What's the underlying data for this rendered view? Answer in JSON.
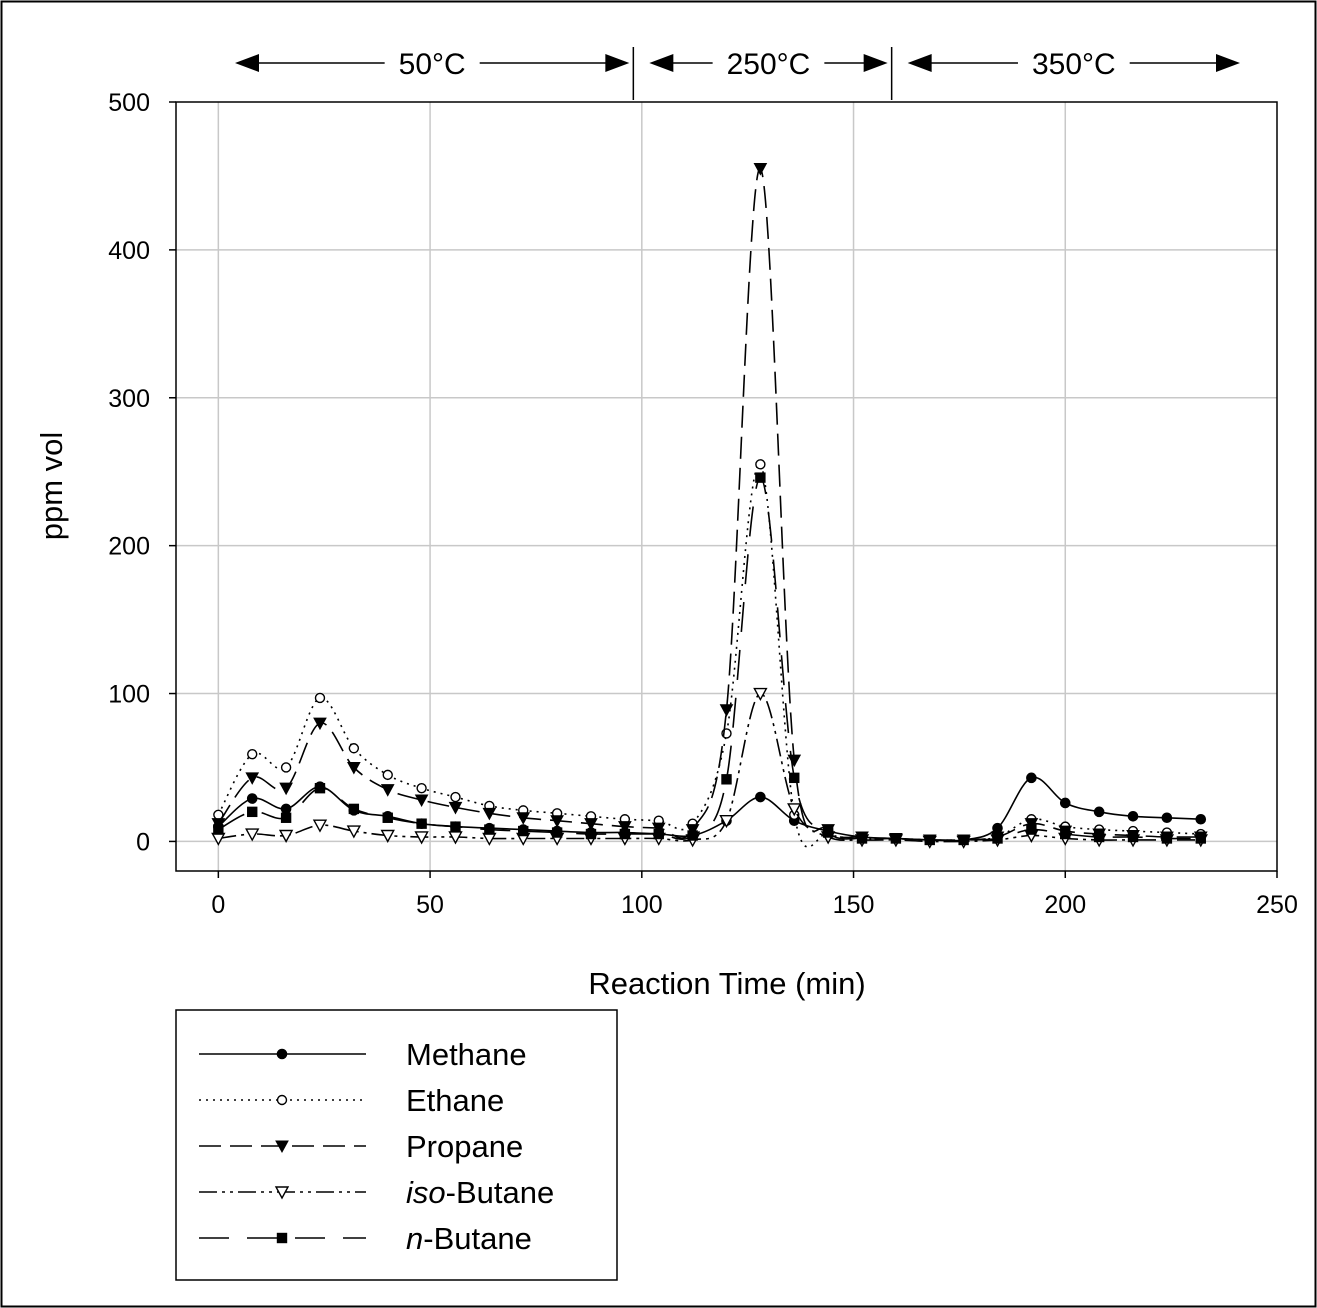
{
  "chart_data": {
    "type": "line",
    "xlabel": "Reaction Time (min)",
    "ylabel": "ppm vol",
    "xlim": [
      -10,
      250
    ],
    "ylim": [
      -20,
      500
    ],
    "xticks": [
      "0",
      "50",
      "100",
      "150",
      "200",
      "250"
    ],
    "yticks": [
      "0",
      "100",
      "200",
      "300",
      "400",
      "500"
    ],
    "grid": true,
    "legend_position": "bottom-left",
    "temperature_regions": [
      {
        "label": "50°C",
        "x_start": -10,
        "x_end": 98
      },
      {
        "label": "250°C",
        "x_start": 98,
        "x_end": 159
      },
      {
        "label": "350°C",
        "x_start": 159,
        "x_end": 240
      }
    ],
    "x": [
      0,
      8,
      16,
      24,
      32,
      40,
      48,
      56,
      64,
      72,
      80,
      88,
      96,
      104,
      112,
      120,
      128,
      136,
      144,
      152,
      160,
      168,
      176,
      184,
      192,
      200,
      208,
      216,
      224,
      232
    ],
    "series": [
      {
        "name": "Methane",
        "line_style": "solid",
        "marker": "filled-circle",
        "values": [
          10,
          29,
          22,
          37,
          21,
          17,
          12,
          10,
          9,
          8,
          7,
          6,
          6,
          5,
          4,
          14,
          30,
          14,
          7,
          3,
          2,
          1,
          1,
          9,
          43,
          26,
          20,
          17,
          16,
          15
        ]
      },
      {
        "name": "Ethane",
        "line_style": "dotted",
        "marker": "open-circle",
        "values": [
          18,
          59,
          50,
          97,
          63,
          45,
          36,
          30,
          24,
          21,
          19,
          17,
          15,
          14,
          12,
          73,
          255,
          18,
          5,
          2,
          2,
          1,
          1,
          3,
          15,
          10,
          8,
          7,
          6,
          5
        ]
      },
      {
        "name": "Propane",
        "line_style": "dashed",
        "marker": "filled-triangle-down",
        "values": [
          12,
          43,
          36,
          80,
          50,
          35,
          28,
          23,
          19,
          16,
          14,
          12,
          10,
          9,
          8,
          89,
          455,
          55,
          8,
          3,
          2,
          1,
          1,
          3,
          12,
          7,
          5,
          4,
          3,
          3
        ]
      },
      {
        "name": "iso-Butane",
        "name_italic": "iso",
        "name_rest": "-Butane",
        "line_style": "dash-dot-dot",
        "marker": "open-triangle-down",
        "values": [
          2,
          5,
          4,
          11,
          7,
          4,
          3,
          3,
          2,
          2,
          2,
          2,
          2,
          2,
          1,
          14,
          100,
          22,
          3,
          1,
          1,
          0,
          0,
          1,
          4,
          2,
          1,
          1,
          1,
          1
        ]
      },
      {
        "name": "n-Butane",
        "name_italic": "n",
        "name_rest": "-Butane",
        "line_style": "long-dash",
        "marker": "filled-square",
        "values": [
          8,
          20,
          16,
          36,
          22,
          16,
          12,
          10,
          8,
          7,
          6,
          5,
          5,
          5,
          4,
          42,
          246,
          43,
          6,
          2,
          2,
          1,
          1,
          2,
          8,
          5,
          3,
          3,
          2,
          2
        ]
      }
    ]
  }
}
